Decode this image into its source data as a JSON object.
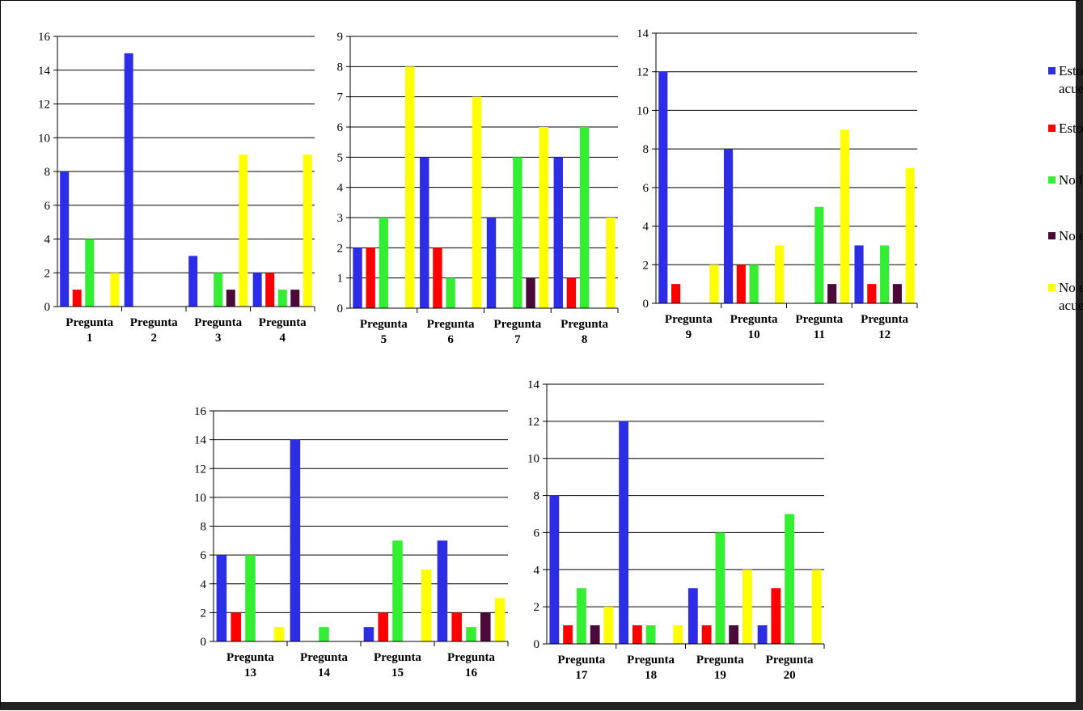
{
  "legend": [
    {
      "label_lines": [
        "Estoy muy de",
        "acuerdo"
      ],
      "color": "#2d2de6"
    },
    {
      "label_lines": [
        "Estoy de acuerdo"
      ],
      "color": "#ff0000"
    },
    {
      "label_lines": [
        "No lo tengo claro"
      ],
      "color": "#33ee33"
    },
    {
      "label_lines": [
        "No estoy de acuerdo"
      ],
      "color": "#4a0a3a"
    },
    {
      "label_lines": [
        "No estoy nada de",
        "acuerdo"
      ],
      "color": "#ffff00"
    }
  ],
  "chart_data": [
    {
      "type": "bar",
      "categories": [
        [
          "Pregunta",
          "1"
        ],
        [
          "Pregunta",
          "2"
        ],
        [
          "Pregunta",
          "3"
        ],
        [
          "Pregunta",
          "4"
        ]
      ],
      "ylim": [
        0,
        16
      ],
      "yticks": [
        0,
        2,
        4,
        6,
        8,
        10,
        12,
        14,
        16
      ],
      "series": [
        {
          "name": "Estoy muy de acuerdo",
          "values": [
            8,
            15,
            3,
            2
          ]
        },
        {
          "name": "Estoy de acuerdo",
          "values": [
            1,
            0,
            0,
            2
          ]
        },
        {
          "name": "No lo tengo claro",
          "values": [
            4,
            0,
            2,
            1
          ]
        },
        {
          "name": "No estoy de acuerdo",
          "values": [
            0,
            0,
            1,
            1
          ]
        },
        {
          "name": "No estoy nada de acuerdo",
          "values": [
            2,
            0,
            9,
            9
          ]
        }
      ]
    },
    {
      "type": "bar",
      "categories": [
        [
          "Pregunta",
          "5"
        ],
        [
          "Pregunta",
          "6"
        ],
        [
          "Pregunta",
          "7"
        ],
        [
          "Pregunta",
          "8"
        ]
      ],
      "ylim": [
        0,
        9
      ],
      "yticks": [
        0,
        1,
        2,
        3,
        4,
        5,
        6,
        7,
        8,
        9
      ],
      "series": [
        {
          "name": "Estoy muy de acuerdo",
          "values": [
            2,
            5,
            3,
            5
          ]
        },
        {
          "name": "Estoy de acuerdo",
          "values": [
            2,
            2,
            0,
            1
          ]
        },
        {
          "name": "No lo tengo claro",
          "values": [
            3,
            1,
            5,
            6
          ]
        },
        {
          "name": "No estoy de acuerdo",
          "values": [
            0,
            0,
            1,
            0
          ]
        },
        {
          "name": "No estoy nada de acuerdo",
          "values": [
            8,
            7,
            6,
            3
          ]
        }
      ]
    },
    {
      "type": "bar",
      "categories": [
        [
          "Pregunta",
          "9"
        ],
        [
          "Pregunta",
          "10"
        ],
        [
          "Pregunta",
          "11"
        ],
        [
          "Pregunta",
          "12"
        ]
      ],
      "ylim": [
        0,
        14
      ],
      "yticks": [
        0,
        2,
        4,
        6,
        8,
        10,
        12,
        14
      ],
      "series": [
        {
          "name": "Estoy muy de acuerdo",
          "values": [
            12,
            8,
            0,
            3
          ]
        },
        {
          "name": "Estoy de acuerdo",
          "values": [
            1,
            2,
            0,
            1
          ]
        },
        {
          "name": "No lo tengo claro",
          "values": [
            0,
            2,
            5,
            3
          ]
        },
        {
          "name": "No estoy de acuerdo",
          "values": [
            0,
            0,
            1,
            1
          ]
        },
        {
          "name": "No estoy nada de acuerdo",
          "values": [
            2,
            3,
            9,
            7
          ]
        }
      ]
    },
    {
      "type": "bar",
      "categories": [
        [
          "Pregunta",
          "13"
        ],
        [
          "Pregunta",
          "14"
        ],
        [
          "Pregunta",
          "15"
        ],
        [
          "Pregunta",
          "16"
        ]
      ],
      "ylim": [
        0,
        16
      ],
      "yticks": [
        0,
        2,
        4,
        6,
        8,
        10,
        12,
        14,
        16
      ],
      "series": [
        {
          "name": "Estoy muy de acuerdo",
          "values": [
            6,
            14,
            1,
            7
          ]
        },
        {
          "name": "Estoy de acuerdo",
          "values": [
            2,
            0,
            2,
            2
          ]
        },
        {
          "name": "No lo tengo claro",
          "values": [
            6,
            1,
            7,
            1
          ]
        },
        {
          "name": "No estoy de acuerdo",
          "values": [
            0,
            0,
            0,
            2
          ]
        },
        {
          "name": "No estoy nada de acuerdo",
          "values": [
            1,
            0,
            5,
            3
          ]
        }
      ]
    },
    {
      "type": "bar",
      "categories": [
        [
          "Pregunta",
          "17"
        ],
        [
          "Pregunta",
          "18"
        ],
        [
          "Pregunta",
          "19"
        ],
        [
          "Pregunta",
          "20"
        ]
      ],
      "ylim": [
        0,
        14
      ],
      "yticks": [
        0,
        2,
        4,
        6,
        8,
        10,
        12,
        14
      ],
      "series": [
        {
          "name": "Estoy muy de acuerdo",
          "values": [
            8,
            12,
            3,
            1
          ]
        },
        {
          "name": "Estoy de acuerdo",
          "values": [
            1,
            1,
            1,
            3
          ]
        },
        {
          "name": "No lo tengo claro",
          "values": [
            3,
            1,
            6,
            7
          ]
        },
        {
          "name": "No estoy de acuerdo",
          "values": [
            1,
            0,
            1,
            0
          ]
        },
        {
          "name": "No estoy nada de acuerdo",
          "values": [
            2,
            1,
            4,
            4
          ]
        }
      ]
    }
  ]
}
